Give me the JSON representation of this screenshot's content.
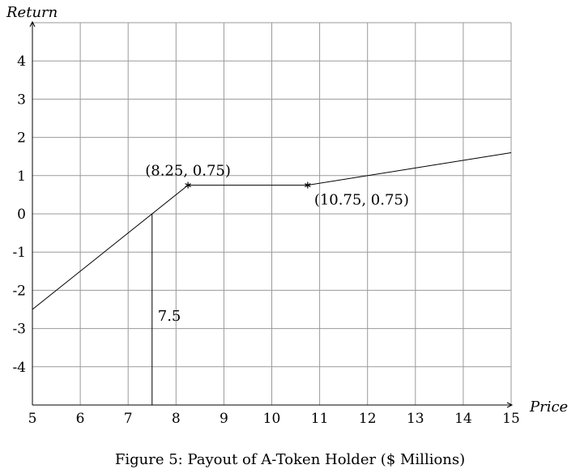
{
  "chart_data": {
    "type": "line",
    "xlabel": "Price",
    "ylabel": "Return",
    "caption": "Figure 5: Payout of A-Token Holder ($ Millions)",
    "xlim": [
      5,
      15
    ],
    "ylim": [
      -5,
      5
    ],
    "x_ticks": [
      5,
      6,
      7,
      8,
      9,
      10,
      11,
      12,
      13,
      14,
      15
    ],
    "y_ticks": [
      4,
      3,
      2,
      1,
      0,
      -1,
      -2,
      -3,
      -4
    ],
    "y_tick_labels": [
      "4",
      "3",
      "2",
      "1",
      "0",
      "-1",
      "-2",
      "-3",
      "-4"
    ],
    "grid": true,
    "series": [
      {
        "points": [
          [
            5,
            -2.5
          ],
          [
            8.25,
            0.75
          ],
          [
            10.75,
            0.75
          ],
          [
            15,
            1.6
          ]
        ]
      }
    ],
    "markers": [
      [
        8.25,
        0.75
      ],
      [
        10.75,
        0.75
      ]
    ],
    "annotations": [
      {
        "text": "(8.25, 0.75)",
        "x": 8.25,
        "y": 0.75
      },
      {
        "text": "(10.75, 0.75)",
        "x": 10.75,
        "y": 0.75
      },
      {
        "text": "7.5",
        "x": 7.5,
        "y": -2.5
      }
    ],
    "vertical_marker": {
      "x": 7.5,
      "y_from": -5,
      "y_to": 0
    }
  }
}
